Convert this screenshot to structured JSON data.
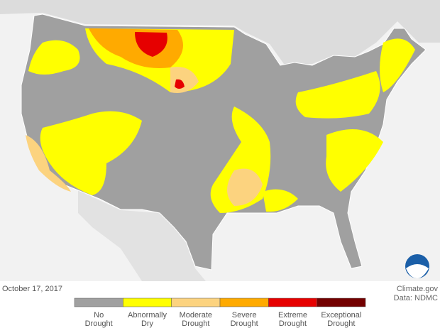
{
  "footer": {
    "date": "October 17, 2017",
    "credit": "Climate.gov",
    "source": "Data: NDMC"
  },
  "legend": {
    "items": [
      {
        "lines": [
          "No",
          "Drought"
        ],
        "color": "#a0a0a0"
      },
      {
        "lines": [
          "Abnormally",
          "Dry"
        ],
        "color": "#ffff00"
      },
      {
        "lines": [
          "Moderate",
          "Drought"
        ],
        "color": "#fcd37f"
      },
      {
        "lines": [
          "Severe",
          "Drought"
        ],
        "color": "#ffaa00"
      },
      {
        "lines": [
          "Extreme",
          "Drought"
        ],
        "color": "#e60000"
      },
      {
        "lines": [
          "Exceptional",
          "Drought"
        ],
        "color": "#730000"
      }
    ]
  }
}
